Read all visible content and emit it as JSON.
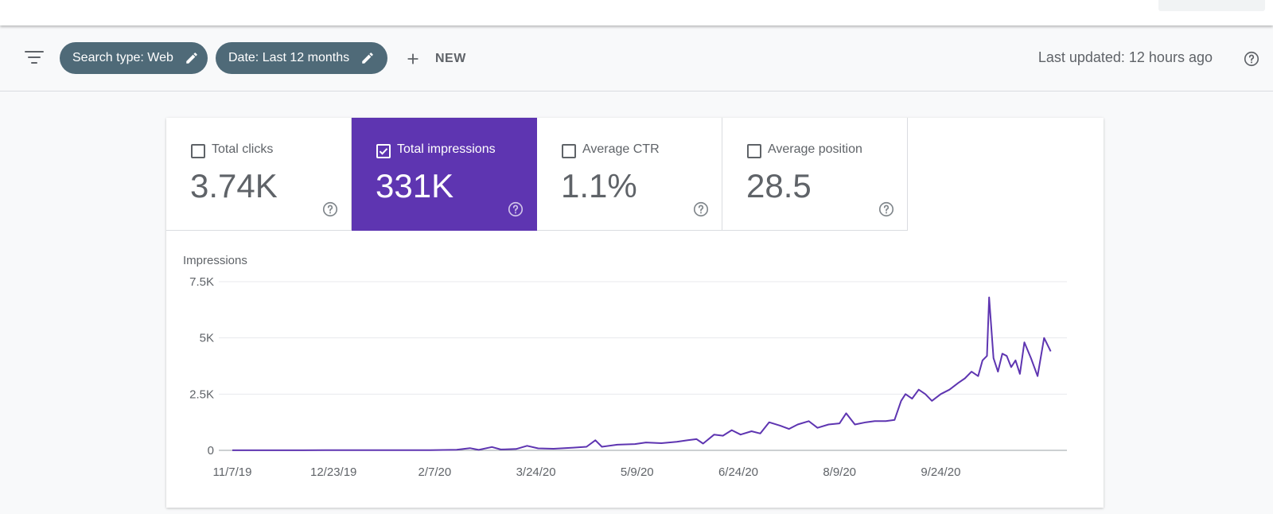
{
  "header": {
    "filters": [
      {
        "label": "Search type: Web"
      },
      {
        "label": "Date: Last 12 months"
      }
    ],
    "new_label": "NEW",
    "last_updated": "Last updated: 12 hours ago"
  },
  "metrics": [
    {
      "label": "Total clicks",
      "value": "3.74K",
      "checked": false
    },
    {
      "label": "Total impressions",
      "value": "331K",
      "checked": true
    },
    {
      "label": "Average CTR",
      "value": "1.1%",
      "checked": false
    },
    {
      "label": "Average position",
      "value": "28.5",
      "checked": false
    }
  ],
  "colors": {
    "accent": "#5e35b1",
    "chip": "#4f6a78",
    "line": "#5e35b1"
  },
  "chart_data": {
    "type": "line",
    "ylabel": "Impressions",
    "yticks": [
      "0",
      "2.5K",
      "5K",
      "7.5K"
    ],
    "ylim": [
      0,
      7500
    ],
    "xticks": [
      "11/7/19",
      "12/23/19",
      "2/7/20",
      "3/24/20",
      "5/9/20",
      "6/24/20",
      "8/9/20",
      "9/24/20"
    ],
    "xlim": [
      "2019-11-07",
      "2020-11-20"
    ],
    "grid": true,
    "series": [
      {
        "points": [
          [
            "2019-11-07",
            5
          ],
          [
            "2019-11-21",
            5
          ],
          [
            "2019-12-05",
            5
          ],
          [
            "2019-12-19",
            8
          ],
          [
            "2020-01-05",
            10
          ],
          [
            "2020-01-20",
            10
          ],
          [
            "2020-02-05",
            12
          ],
          [
            "2020-02-17",
            25
          ],
          [
            "2020-02-23",
            100
          ],
          [
            "2020-02-27",
            20
          ],
          [
            "2020-03-04",
            150
          ],
          [
            "2020-03-08",
            40
          ],
          [
            "2020-03-15",
            60
          ],
          [
            "2020-03-20",
            200
          ],
          [
            "2020-03-25",
            90
          ],
          [
            "2020-04-01",
            70
          ],
          [
            "2020-04-10",
            120
          ],
          [
            "2020-04-16",
            160
          ],
          [
            "2020-04-20",
            450
          ],
          [
            "2020-04-23",
            160
          ],
          [
            "2020-04-30",
            250
          ],
          [
            "2020-05-08",
            280
          ],
          [
            "2020-05-13",
            350
          ],
          [
            "2020-05-20",
            320
          ],
          [
            "2020-05-27",
            380
          ],
          [
            "2020-06-01",
            450
          ],
          [
            "2020-06-05",
            500
          ],
          [
            "2020-06-08",
            300
          ],
          [
            "2020-06-13",
            700
          ],
          [
            "2020-06-17",
            650
          ],
          [
            "2020-06-21",
            900
          ],
          [
            "2020-06-25",
            700
          ],
          [
            "2020-06-30",
            850
          ],
          [
            "2020-07-04",
            750
          ],
          [
            "2020-07-08",
            1250
          ],
          [
            "2020-07-13",
            1100
          ],
          [
            "2020-07-17",
            950
          ],
          [
            "2020-07-21",
            1150
          ],
          [
            "2020-07-26",
            1300
          ],
          [
            "2020-07-30",
            1000
          ],
          [
            "2020-08-04",
            1150
          ],
          [
            "2020-08-09",
            1200
          ],
          [
            "2020-08-12",
            1650
          ],
          [
            "2020-08-16",
            1150
          ],
          [
            "2020-08-21",
            1250
          ],
          [
            "2020-08-25",
            1300
          ],
          [
            "2020-08-30",
            1300
          ],
          [
            "2020-09-03",
            1350
          ],
          [
            "2020-09-06",
            2200
          ],
          [
            "2020-09-08",
            2500
          ],
          [
            "2020-09-11",
            2300
          ],
          [
            "2020-09-14",
            2700
          ],
          [
            "2020-09-17",
            2500
          ],
          [
            "2020-09-20",
            2200
          ],
          [
            "2020-09-24",
            2500
          ],
          [
            "2020-09-28",
            2700
          ],
          [
            "2020-10-02",
            3000
          ],
          [
            "2020-10-05",
            3200
          ],
          [
            "2020-10-08",
            3500
          ],
          [
            "2020-10-11",
            3300
          ],
          [
            "2020-10-13",
            4000
          ],
          [
            "2020-10-15",
            4200
          ],
          [
            "2020-10-16",
            6800
          ],
          [
            "2020-10-18",
            4100
          ],
          [
            "2020-10-20",
            3500
          ],
          [
            "2020-10-22",
            4300
          ],
          [
            "2020-10-24",
            4200
          ],
          [
            "2020-10-26",
            3700
          ],
          [
            "2020-10-28",
            4000
          ],
          [
            "2020-10-30",
            3400
          ],
          [
            "2020-11-01",
            4800
          ],
          [
            "2020-11-04",
            4100
          ],
          [
            "2020-11-07",
            3300
          ],
          [
            "2020-11-10",
            5000
          ],
          [
            "2020-11-13",
            4400
          ]
        ]
      }
    ]
  }
}
